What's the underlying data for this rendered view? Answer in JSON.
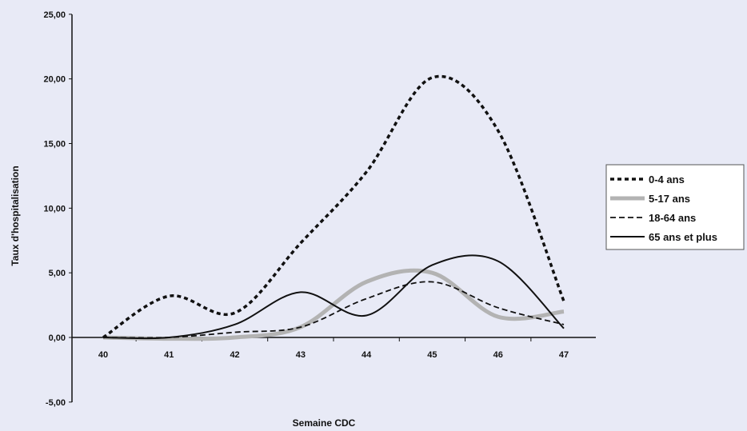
{
  "chart_data": {
    "type": "line",
    "title": "",
    "xlabel": "Semaine CDC",
    "ylabel": "Taux d'hospitalisation",
    "categories": [
      "40",
      "41",
      "42",
      "43",
      "44",
      "45",
      "46",
      "47"
    ],
    "x": [
      40,
      41,
      42,
      43,
      44,
      45,
      46,
      47
    ],
    "ylim": [
      -5,
      25
    ],
    "yticks": [
      -5,
      0,
      5,
      10,
      15,
      20,
      25
    ],
    "ytick_labels": [
      "-5,00",
      "0,00",
      "5,00",
      "10,00",
      "15,00",
      "20,00",
      "25,00"
    ],
    "grid": false,
    "legend_position": "right",
    "series": [
      {
        "name": "0-4 ans",
        "values": [
          0.0,
          3.2,
          1.9,
          7.3,
          12.8,
          20.1,
          16.0,
          2.8
        ],
        "color": "#111111",
        "style": "dotted-thick"
      },
      {
        "name": "5-17 ans",
        "values": [
          0.0,
          -0.1,
          0.0,
          0.8,
          4.3,
          5.0,
          1.6,
          2.0
        ],
        "color": "#b3b3b3",
        "style": "solid-thick"
      },
      {
        "name": "18-64 ans",
        "values": [
          0.0,
          0.0,
          0.4,
          0.8,
          3.0,
          4.3,
          2.3,
          1.0
        ],
        "color": "#111111",
        "style": "dashed"
      },
      {
        "name": "65 ans et plus",
        "values": [
          0.0,
          0.0,
          1.0,
          3.5,
          1.7,
          5.6,
          5.9,
          0.7
        ],
        "color": "#111111",
        "style": "solid"
      }
    ]
  }
}
